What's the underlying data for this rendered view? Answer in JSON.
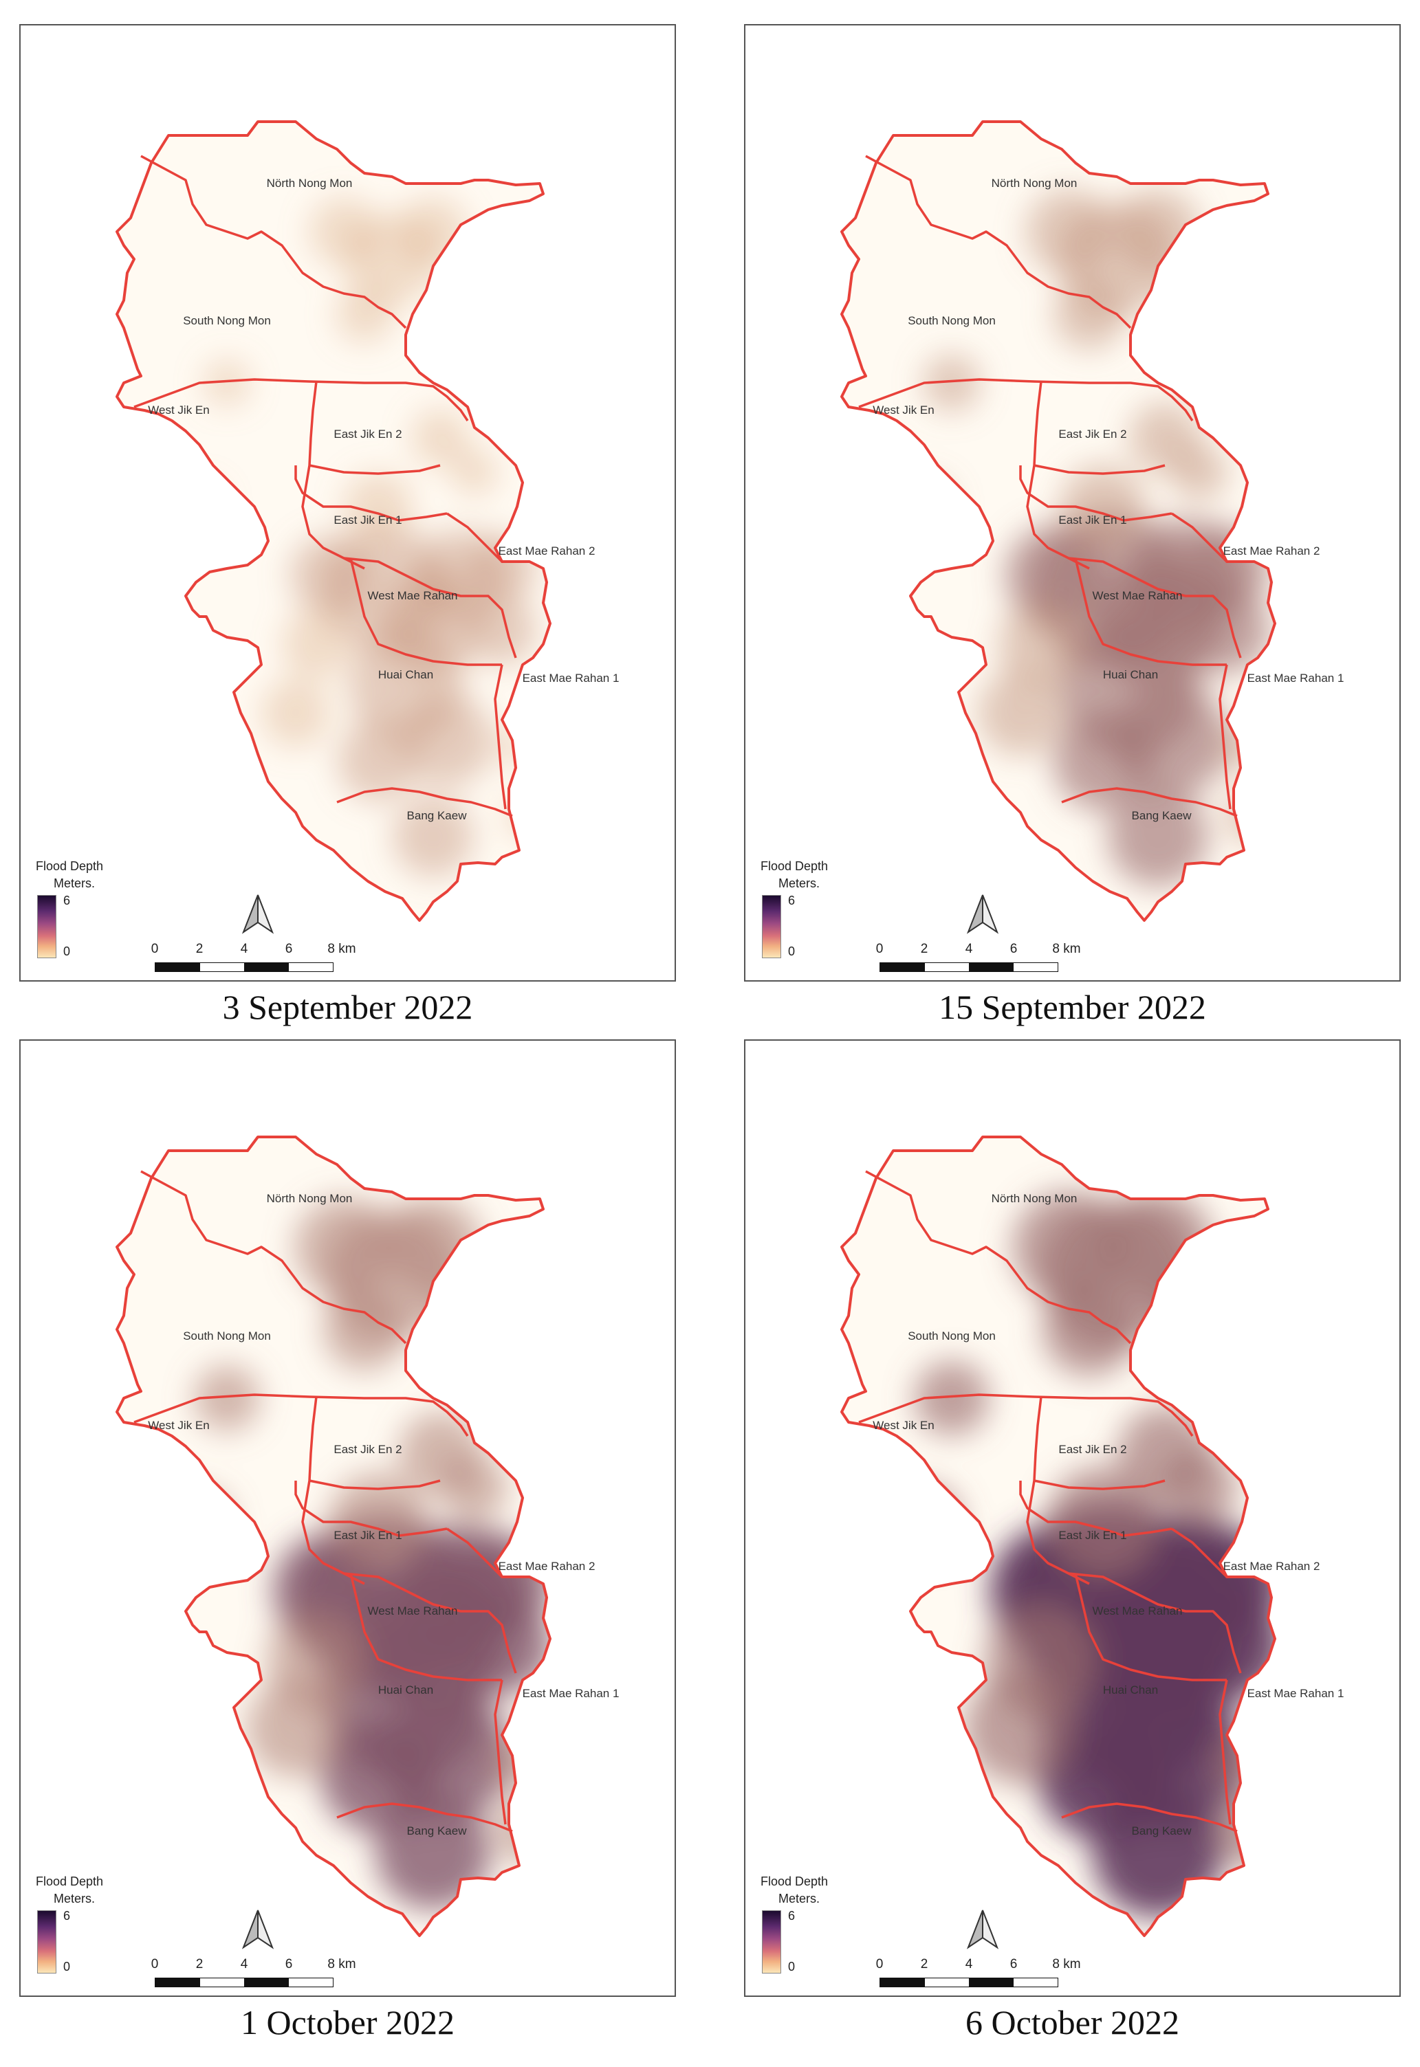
{
  "legend": {
    "title_line1": "Flood Depth",
    "title_line2": "Meters.",
    "max": "6",
    "min": "0"
  },
  "scalebar": {
    "ticks": [
      "0",
      "2",
      "4",
      "6",
      "8 km"
    ]
  },
  "regions": {
    "north_nong_mon": "Nörth Nong Mon",
    "south_nong_mon": "South Nong Mon",
    "west_jik_en": "West Jik En",
    "east_jik_en_2": "East Jik En 2",
    "east_jik_en_1": "East Jik En 1",
    "east_mae_rahan_2": "East Mae Rahan 2",
    "west_mae_rahan": "West Mae Rahan",
    "east_mae_rahan_1": "East Mae Rahan 1",
    "huai_chan": "Huai Chan",
    "bang_kaew": "Bang Kaew"
  },
  "panels": [
    {
      "caption": "3 September 2022",
      "intensity": 0.3
    },
    {
      "caption": "15 September 2022",
      "intensity": 0.55
    },
    {
      "caption": "1 October 2022",
      "intensity": 0.75
    },
    {
      "caption": "6 October 2022",
      "intensity": 0.95
    }
  ],
  "colors": {
    "boundary": "#e8413a",
    "flood_low": "#f5c48f",
    "flood_high": "#3d1550"
  }
}
